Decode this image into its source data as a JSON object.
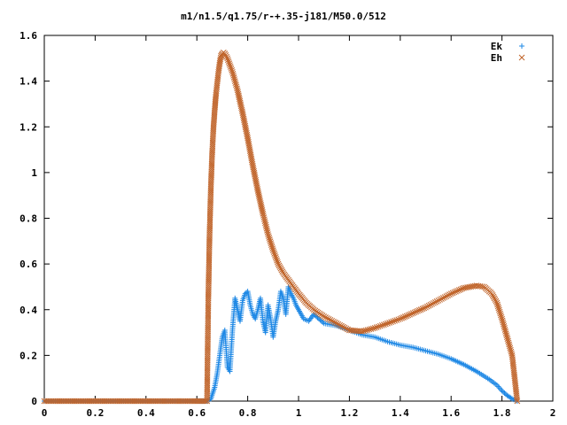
{
  "chart_data": {
    "type": "scatter",
    "title": "m1/n1.5/q1.75/r-+.35-j181/M50.0/512",
    "xlabel": "",
    "ylabel": "",
    "xlim": [
      0,
      2
    ],
    "ylim": [
      0,
      1.6
    ],
    "x_ticks": [
      "0",
      "0.2",
      "0.4",
      "0.6",
      "0.8",
      "1",
      "1.2",
      "1.4",
      "1.6",
      "1.8",
      "2"
    ],
    "y_ticks": [
      "0",
      "0.2",
      "0.4",
      "0.6",
      "0.8",
      "1",
      "1.2",
      "1.4",
      "1.6"
    ],
    "grid": false,
    "legend_position": "top-right",
    "series": [
      {
        "name": "Ek",
        "marker": "plus",
        "color": "#1e88e5",
        "points": [
          [
            0.0,
            0.0
          ],
          [
            0.2,
            0.0
          ],
          [
            0.4,
            0.0
          ],
          [
            0.6,
            0.0
          ],
          [
            0.64,
            0.0
          ],
          [
            0.655,
            0.01
          ],
          [
            0.67,
            0.06
          ],
          [
            0.68,
            0.12
          ],
          [
            0.69,
            0.2
          ],
          [
            0.7,
            0.28
          ],
          [
            0.71,
            0.31
          ],
          [
            0.72,
            0.15
          ],
          [
            0.73,
            0.13
          ],
          [
            0.74,
            0.31
          ],
          [
            0.75,
            0.45
          ],
          [
            0.76,
            0.4
          ],
          [
            0.77,
            0.35
          ],
          [
            0.78,
            0.44
          ],
          [
            0.79,
            0.47
          ],
          [
            0.8,
            0.48
          ],
          [
            0.81,
            0.42
          ],
          [
            0.82,
            0.38
          ],
          [
            0.83,
            0.36
          ],
          [
            0.84,
            0.4
          ],
          [
            0.85,
            0.45
          ],
          [
            0.86,
            0.35
          ],
          [
            0.87,
            0.3
          ],
          [
            0.88,
            0.42
          ],
          [
            0.89,
            0.36
          ],
          [
            0.9,
            0.28
          ],
          [
            0.91,
            0.35
          ],
          [
            0.92,
            0.4
          ],
          [
            0.93,
            0.48
          ],
          [
            0.94,
            0.45
          ],
          [
            0.95,
            0.38
          ],
          [
            0.96,
            0.5
          ],
          [
            0.97,
            0.47
          ],
          [
            0.98,
            0.45
          ],
          [
            0.99,
            0.42
          ],
          [
            1.0,
            0.4
          ],
          [
            1.02,
            0.36
          ],
          [
            1.04,
            0.35
          ],
          [
            1.06,
            0.38
          ],
          [
            1.08,
            0.36
          ],
          [
            1.1,
            0.34
          ],
          [
            1.15,
            0.33
          ],
          [
            1.2,
            0.31
          ],
          [
            1.25,
            0.29
          ],
          [
            1.3,
            0.28
          ],
          [
            1.35,
            0.26
          ],
          [
            1.4,
            0.245
          ],
          [
            1.45,
            0.235
          ],
          [
            1.5,
            0.22
          ],
          [
            1.55,
            0.205
          ],
          [
            1.6,
            0.185
          ],
          [
            1.65,
            0.16
          ],
          [
            1.7,
            0.13
          ],
          [
            1.75,
            0.095
          ],
          [
            1.78,
            0.07
          ],
          [
            1.8,
            0.045
          ],
          [
            1.82,
            0.025
          ],
          [
            1.84,
            0.01
          ],
          [
            1.86,
            0.0
          ]
        ]
      },
      {
        "name": "Eh",
        "marker": "cross",
        "color": "#c0642a",
        "points": [
          [
            0.0,
            0.0
          ],
          [
            0.2,
            0.0
          ],
          [
            0.4,
            0.0
          ],
          [
            0.6,
            0.0
          ],
          [
            0.64,
            0.0
          ],
          [
            0.645,
            0.44
          ],
          [
            0.65,
            0.73
          ],
          [
            0.655,
            0.93
          ],
          [
            0.66,
            1.08
          ],
          [
            0.665,
            1.19
          ],
          [
            0.67,
            1.27
          ],
          [
            0.675,
            1.34
          ],
          [
            0.68,
            1.39
          ],
          [
            0.685,
            1.44
          ],
          [
            0.69,
            1.48
          ],
          [
            0.695,
            1.51
          ],
          [
            0.7,
            1.52
          ],
          [
            0.705,
            1.525
          ],
          [
            0.71,
            1.52
          ],
          [
            0.72,
            1.5
          ],
          [
            0.74,
            1.44
          ],
          [
            0.76,
            1.36
          ],
          [
            0.78,
            1.26
          ],
          [
            0.8,
            1.15
          ],
          [
            0.82,
            1.03
          ],
          [
            0.84,
            0.92
          ],
          [
            0.86,
            0.82
          ],
          [
            0.88,
            0.73
          ],
          [
            0.9,
            0.66
          ],
          [
            0.92,
            0.6
          ],
          [
            0.94,
            0.56
          ],
          [
            0.96,
            0.53
          ],
          [
            0.98,
            0.5
          ],
          [
            1.0,
            0.47
          ],
          [
            1.03,
            0.43
          ],
          [
            1.06,
            0.4
          ],
          [
            1.1,
            0.37
          ],
          [
            1.15,
            0.34
          ],
          [
            1.2,
            0.31
          ],
          [
            1.25,
            0.305
          ],
          [
            1.3,
            0.32
          ],
          [
            1.35,
            0.34
          ],
          [
            1.4,
            0.36
          ],
          [
            1.45,
            0.385
          ],
          [
            1.5,
            0.41
          ],
          [
            1.55,
            0.44
          ],
          [
            1.6,
            0.47
          ],
          [
            1.65,
            0.495
          ],
          [
            1.7,
            0.505
          ],
          [
            1.73,
            0.5
          ],
          [
            1.76,
            0.47
          ],
          [
            1.78,
            0.43
          ],
          [
            1.8,
            0.36
          ],
          [
            1.82,
            0.28
          ],
          [
            1.84,
            0.2
          ],
          [
            1.86,
            0.0
          ]
        ]
      }
    ]
  }
}
